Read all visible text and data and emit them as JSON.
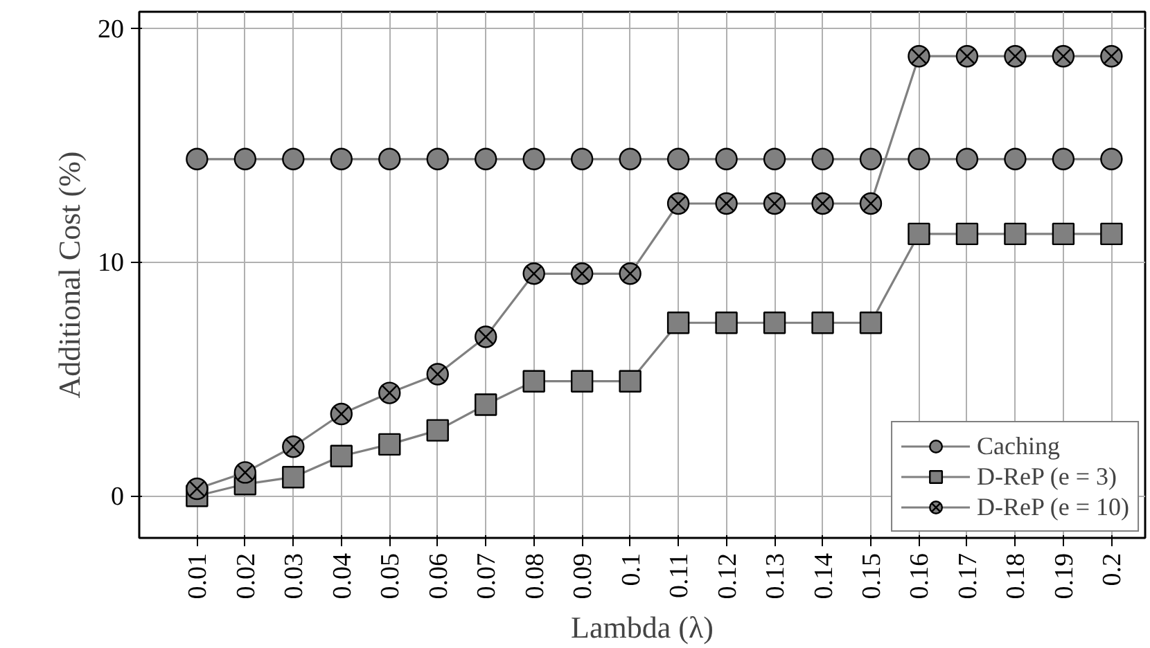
{
  "chart_data": {
    "type": "line",
    "xlabel": "Lambda (λ)",
    "ylabel": "Additional Cost (%)",
    "categories": [
      "0.01",
      "0.02",
      "0.03",
      "0.04",
      "0.05",
      "0.06",
      "0.07",
      "0.08",
      "0.09",
      "0.1",
      "0.11",
      "0.12",
      "0.13",
      "0.14",
      "0.15",
      "0.16",
      "0.17",
      "0.18",
      "0.19",
      "0.2"
    ],
    "ylim": [
      -1.8,
      20.7
    ],
    "yticks": [
      0,
      10,
      20
    ],
    "grid": true,
    "legend": "bottom right",
    "line_style": "solid",
    "series": [
      {
        "name": "Caching",
        "color": "#808080",
        "marker": "circle",
        "values": [
          14.4,
          14.4,
          14.4,
          14.4,
          14.4,
          14.4,
          14.4,
          14.4,
          14.4,
          14.4,
          14.4,
          14.4,
          14.4,
          14.4,
          14.4,
          14.4,
          14.4,
          14.4,
          14.4,
          14.4
        ]
      },
      {
        "name": "D-ReP (e = 3)",
        "color": "#808080",
        "marker": "square",
        "values": [
          0,
          0.5,
          0.8,
          1.7,
          2.2,
          2.8,
          3.9,
          4.9,
          4.9,
          4.9,
          7.4,
          7.4,
          7.4,
          7.4,
          7.4,
          11.2,
          11.2,
          11.2,
          11.2,
          11.2
        ]
      },
      {
        "name": "D-ReP (e = 10)",
        "color": "#808080",
        "marker": "cross",
        "values": [
          0.3,
          1.0,
          2.1,
          3.5,
          4.4,
          5.2,
          6.8,
          9.5,
          9.5,
          9.5,
          12.5,
          12.5,
          12.5,
          12.5,
          12.5,
          18.8,
          18.8,
          18.8,
          18.8,
          18.8
        ]
      }
    ]
  }
}
